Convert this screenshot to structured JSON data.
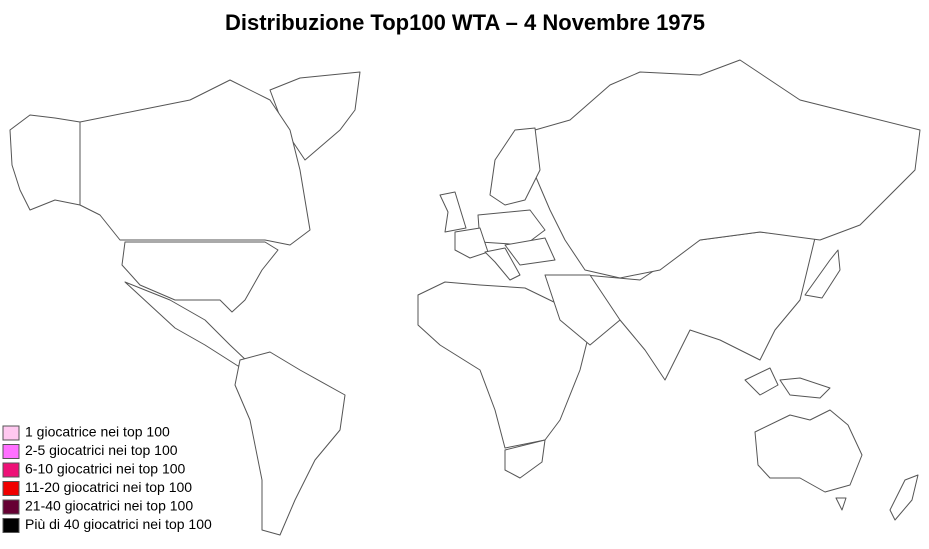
{
  "title": "Distribuzione Top100 WTA – 4 Novembre 1975",
  "legend": [
    {
      "label": "1 giocatrice nei top 100",
      "color": "#ffc8f0"
    },
    {
      "label": "2-5 giocatrici nei top 100",
      "color": "#ff70ff"
    },
    {
      "label": "6-10 giocatrici nei top 100",
      "color": "#ee1177"
    },
    {
      "label": "11-20 giocatrici nei top 100",
      "color": "#f00000"
    },
    {
      "label": "21-40 giocatrici nei top 100",
      "color": "#660033"
    },
    {
      "label": "Più di 40 giocatrici nei top 100",
      "color": "#000000"
    }
  ]
}
